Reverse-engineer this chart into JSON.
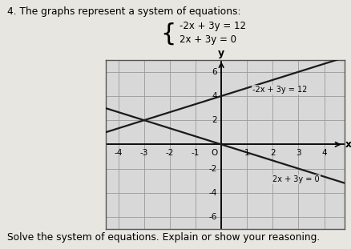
{
  "title_text": "4. The graphs represent a system of equations:",
  "eq1": "-2x + 3y = 12",
  "eq2": "2x + 3y = 0",
  "line1_color": "#1a1a1a",
  "line2_color": "#1a1a1a",
  "grid_color": "#999999",
  "grid_bg": "#d8d8d8",
  "outer_bg": "#c8c8c8",
  "page_bg": "#e8e6e0",
  "xlim": [
    -4.5,
    4.8
  ],
  "ylim": [
    -7,
    7
  ],
  "xticks": [
    -4,
    -3,
    -2,
    -1,
    0,
    1,
    2,
    3,
    4
  ],
  "yticks": [
    -6,
    -4,
    -2,
    0,
    2,
    4,
    6
  ],
  "xlabel": "x",
  "ylabel": "y",
  "intersection": [
    -3,
    2
  ],
  "line1_annot": "-2x + 3y = 12",
  "line2_annot": "2x + 3y = 0",
  "bottom_text": "Solve the system of equations. Explain or show your reasoning."
}
